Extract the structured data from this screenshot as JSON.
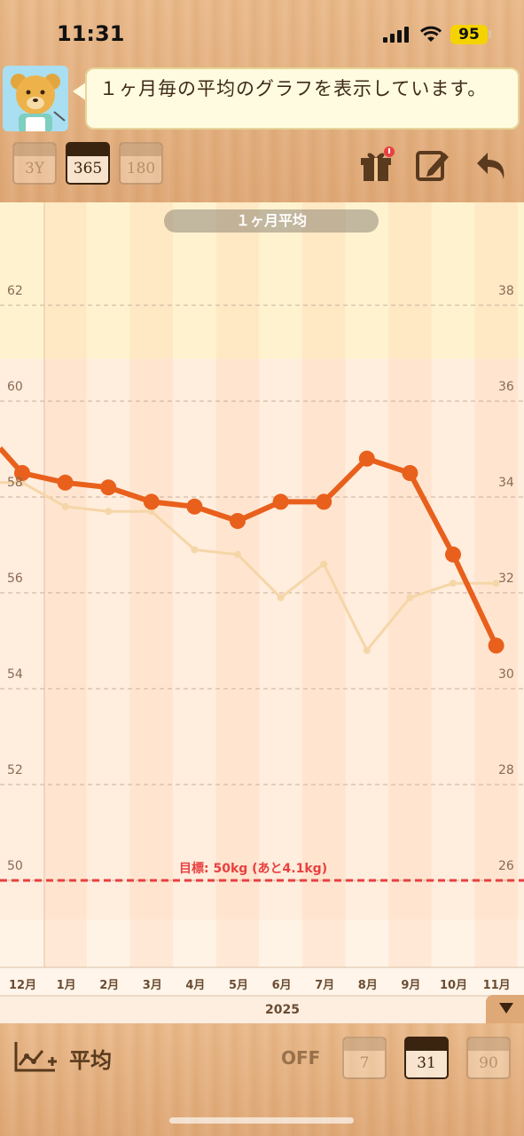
{
  "status_bar": {
    "time": "11:31",
    "battery": "95"
  },
  "message": {
    "text": "１ヶ月毎の平均のグラフを表示しています。"
  },
  "period_buttons": [
    {
      "label": "3Y",
      "active": false
    },
    {
      "label": "365",
      "active": true
    },
    {
      "label": "180",
      "active": false
    }
  ],
  "header_icons": [
    "gift-icon",
    "edit-icon",
    "back-arrow-icon"
  ],
  "chart_data": {
    "type": "line",
    "title": "１ヶ月平均",
    "categories": [
      "12月",
      "1月",
      "2月",
      "3月",
      "4月",
      "5月",
      "6月",
      "7月",
      "8月",
      "9月",
      "10月",
      "11月"
    ],
    "year_label": "2025",
    "y_left": {
      "ticks": [
        "62",
        "60",
        "58",
        "56",
        "54",
        "52",
        "50"
      ],
      "range": [
        49,
        64
      ]
    },
    "y_right": {
      "ticks": [
        "38",
        "36",
        "34",
        "32",
        "30",
        "28",
        "26"
      ],
      "range": [
        25,
        40
      ]
    },
    "series": [
      {
        "axis": "left",
        "color": "#e8601c",
        "values": [
          58.5,
          58.3,
          58.2,
          57.9,
          57.8,
          57.5,
          57.9,
          57.9,
          58.8,
          58.5,
          56.8,
          54.9
        ]
      },
      {
        "axis": "right",
        "color": "#f5d6a8",
        "values": [
          34.3,
          33.8,
          33.7,
          33.7,
          32.9,
          32.8,
          31.9,
          32.6,
          30.8,
          31.9,
          32.2,
          32.2
        ]
      }
    ],
    "goal": {
      "value": 50,
      "label": "目標: 50kg (あと4.1kg)",
      "color": "#e84040"
    },
    "highlight_band": {
      "from": 60.7,
      "to": 64,
      "color": "#fff3cf"
    },
    "grid": true
  },
  "footer": {
    "avg_label": "平均",
    "off_label": "OFF",
    "day_buttons": [
      {
        "label": "7",
        "active": false
      },
      {
        "label": "31",
        "active": true
      },
      {
        "label": "90",
        "active": false
      }
    ]
  }
}
